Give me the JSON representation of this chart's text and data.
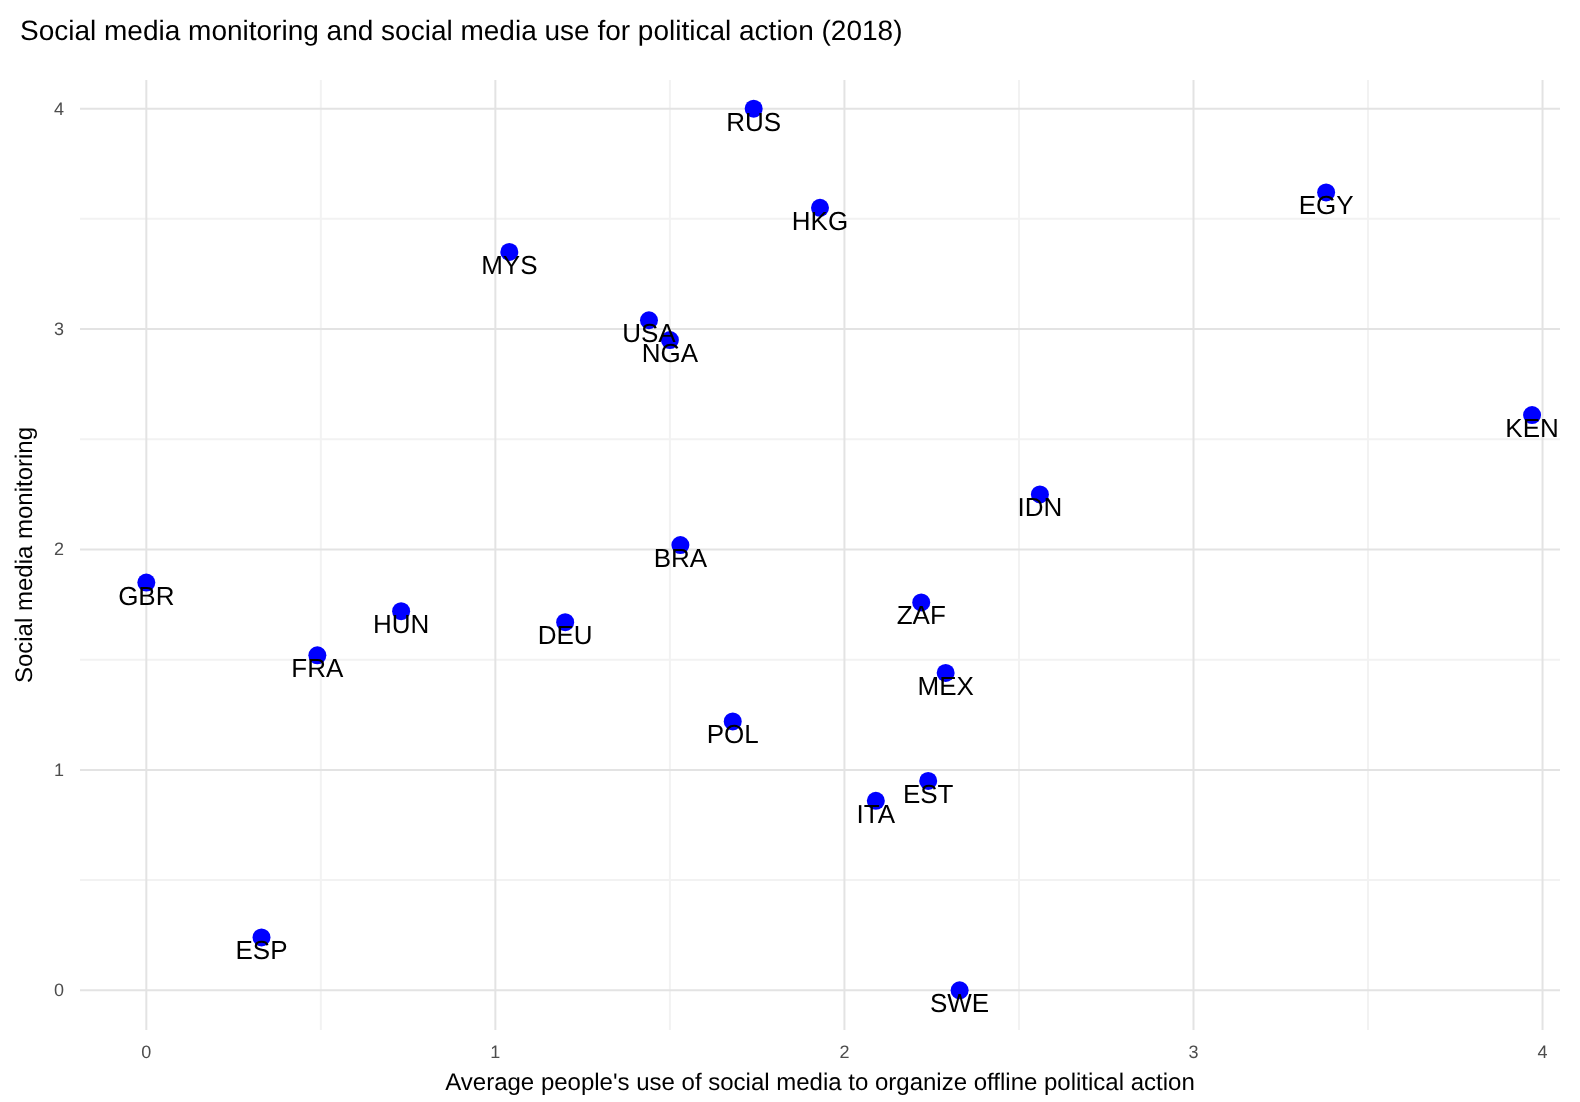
{
  "chart_data": {
    "type": "scatter",
    "title": "Social media monitoring and social media use for political action (2018)",
    "xlabel": "Average people's use of social media to organize offline political action",
    "ylabel": "Social media monitoring",
    "x": [
      1.74,
      1.93,
      3.38,
      1.04,
      1.44,
      1.5,
      3.97,
      2.56,
      1.53,
      0,
      0.73,
      1.2,
      2.22,
      0.49,
      2.29,
      1.68,
      2.24,
      2.09,
      0.33,
      2.33
    ],
    "series": [
      {
        "color": "#0000ff",
        "values": [
          4.0,
          3.55,
          3.62,
          3.35,
          3.04,
          2.95,
          2.61,
          2.25,
          2.02,
          1.85,
          1.72,
          1.67,
          1.76,
          1.52,
          1.44,
          1.22,
          0.95,
          0.86,
          0.24,
          0
        ]
      }
    ],
    "annotations": [
      {
        "text": "RUS",
        "x": 1.74,
        "y": 4.0
      },
      {
        "text": "HKG",
        "x": 1.93,
        "y": 3.55
      },
      {
        "text": "EGY",
        "x": 3.38,
        "y": 3.62
      },
      {
        "text": "MYS",
        "x": 1.04,
        "y": 3.35
      },
      {
        "text": "USA",
        "x": 1.44,
        "y": 3.04
      },
      {
        "text": "NGA",
        "x": 1.5,
        "y": 2.95
      },
      {
        "text": "KEN",
        "x": 3.97,
        "y": 2.61
      },
      {
        "text": "IDN",
        "x": 2.56,
        "y": 2.25
      },
      {
        "text": "BRA",
        "x": 1.53,
        "y": 2.02
      },
      {
        "text": "GBR",
        "x": 0,
        "y": 1.85
      },
      {
        "text": "HUN",
        "x": 0.73,
        "y": 1.72
      },
      {
        "text": "DEU",
        "x": 1.2,
        "y": 1.67
      },
      {
        "text": "ZAF",
        "x": 2.22,
        "y": 1.76
      },
      {
        "text": "FRA",
        "x": 0.49,
        "y": 1.52
      },
      {
        "text": "MEX",
        "x": 2.29,
        "y": 1.44
      },
      {
        "text": "POL",
        "x": 1.68,
        "y": 1.22
      },
      {
        "text": "EST",
        "x": 2.24,
        "y": 0.95
      },
      {
        "text": "ITA",
        "x": 2.09,
        "y": 0.86
      },
      {
        "text": "ESP",
        "x": 0.33,
        "y": 0.24
      },
      {
        "text": "SWE",
        "x": 2.33,
        "y": 0
      }
    ],
    "xlim": [
      -0.19,
      4.05
    ],
    "ylim": [
      -0.18,
      4.13
    ],
    "xticks": [
      0,
      1,
      2,
      3,
      4
    ],
    "yticks": [
      0,
      1,
      2,
      3,
      4
    ],
    "grid": true,
    "marker": "circle"
  }
}
